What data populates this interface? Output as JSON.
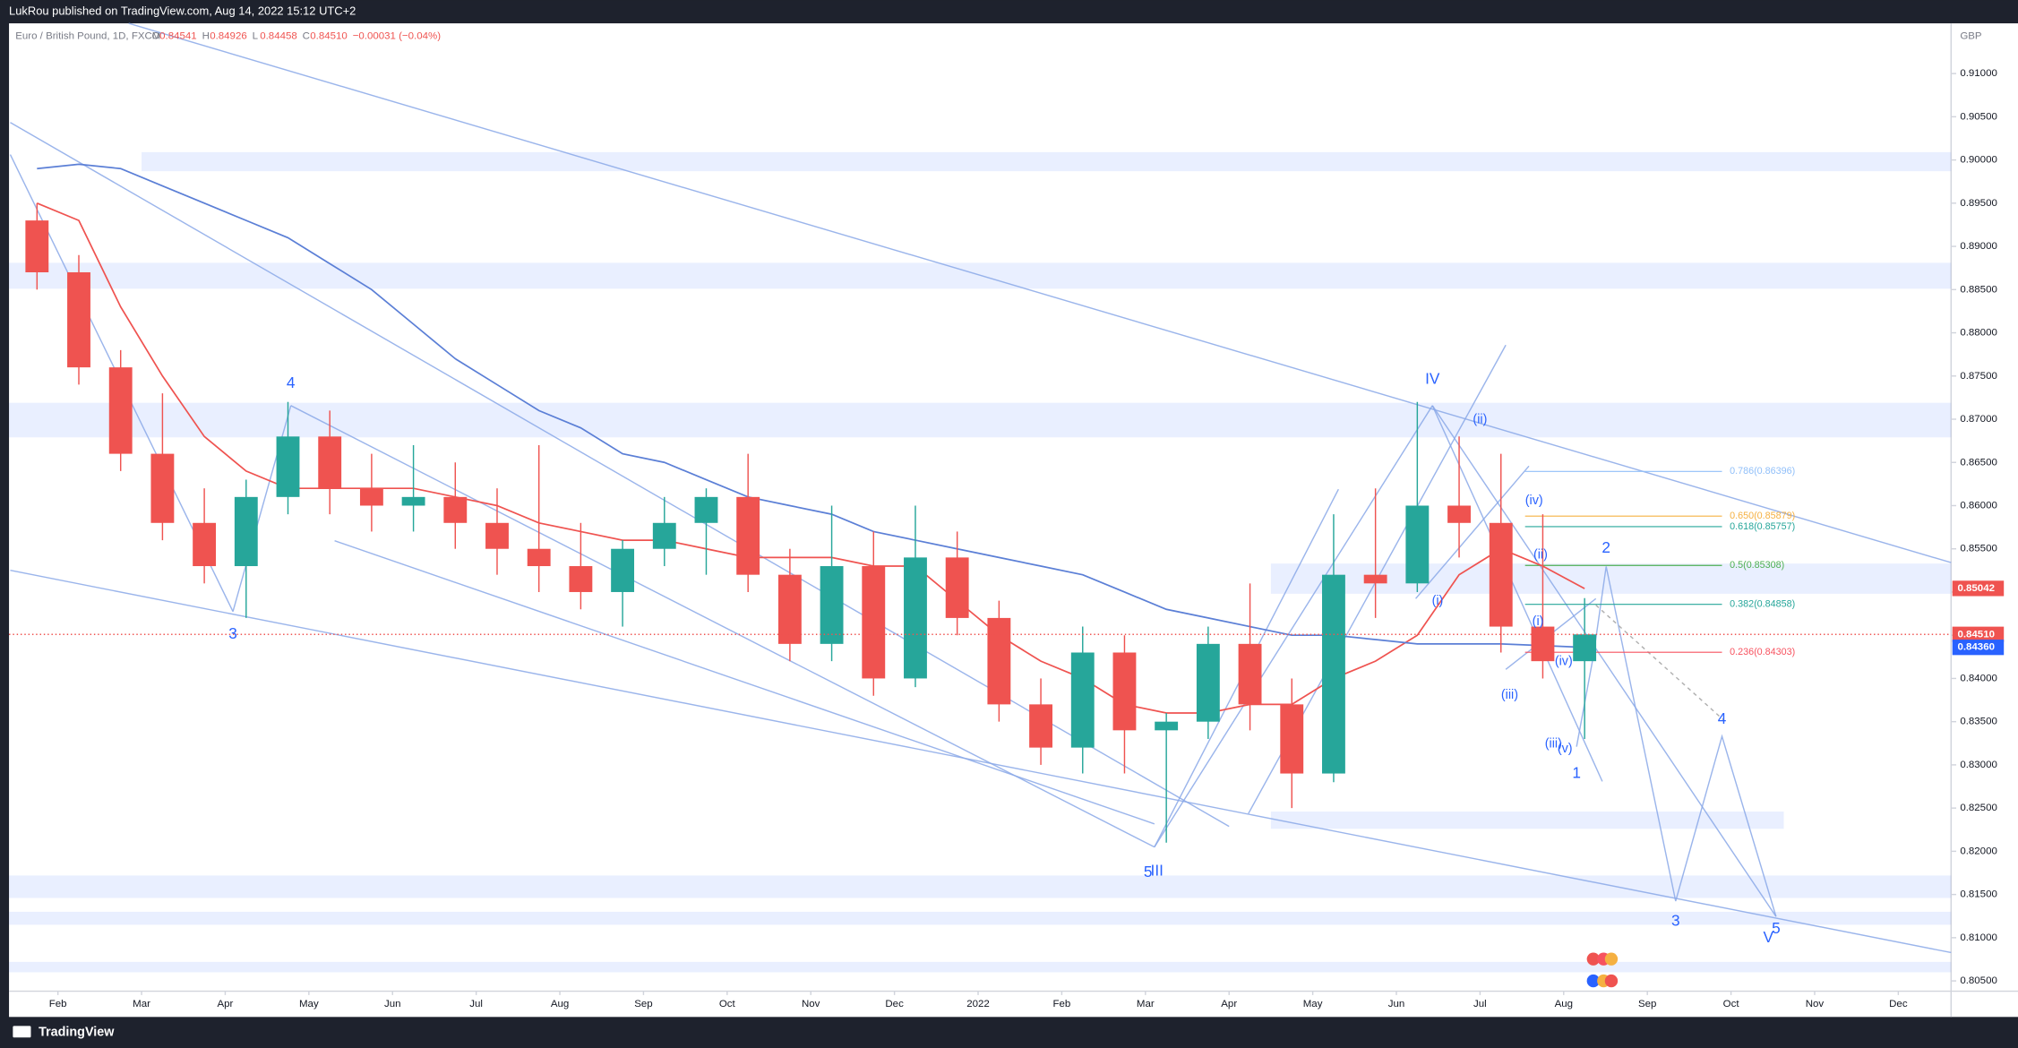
{
  "header": "LukRou published on TradingView.com, Aug 14, 2022 15:12 UTC+2",
  "footer": "TradingView",
  "chart_data": {
    "type": "candlestick",
    "title": "Euro / British Pound, 1D, FXCM",
    "legend": [
      {
        "key": "O",
        "value": "0.84541"
      },
      {
        "key": "H",
        "value": "0.84926"
      },
      {
        "key": "L",
        "value": "0.84458"
      },
      {
        "key": "C",
        "value": "0.84510"
      }
    ],
    "change": "−0.00031 (−0.04%)",
    "currency": "GBP",
    "up_color": "#26a69a",
    "down_color": "#ef5350",
    "ylim": [
      0.80381,
      0.91581
    ],
    "yticks": [
      {
        "value": 0.805,
        "label": "0.80500"
      },
      {
        "value": 0.81,
        "label": "0.81000"
      },
      {
        "value": 0.815,
        "label": "0.81500"
      },
      {
        "value": 0.82,
        "label": "0.82000"
      },
      {
        "value": 0.825,
        "label": "0.82500"
      },
      {
        "value": 0.83,
        "label": "0.83000"
      },
      {
        "value": 0.835,
        "label": "0.83500"
      },
      {
        "value": 0.84,
        "label": "0.84000"
      },
      {
        "value": 0.845,
        "label": "0.84500"
      },
      {
        "value": 0.85,
        "label": "0.85000"
      },
      {
        "value": 0.855,
        "label": "0.85500"
      },
      {
        "value": 0.86,
        "label": "0.86000"
      },
      {
        "value": 0.865,
        "label": "0.86500"
      },
      {
        "value": 0.87,
        "label": "0.87000"
      },
      {
        "value": 0.875,
        "label": "0.87500"
      },
      {
        "value": 0.88,
        "label": "0.88000"
      },
      {
        "value": 0.885,
        "label": "0.88500"
      },
      {
        "value": 0.89,
        "label": "0.89000"
      },
      {
        "value": 0.895,
        "label": "0.89500"
      },
      {
        "value": 0.9,
        "label": "0.90000"
      },
      {
        "value": 0.905,
        "label": "0.90500"
      },
      {
        "value": 0.91,
        "label": "0.91000"
      }
    ],
    "xticks": [
      {
        "value": 0.5,
        "label": "Feb"
      },
      {
        "value": 2.5,
        "label": "Mar"
      },
      {
        "value": 4.5,
        "label": "Apr"
      },
      {
        "value": 6.5,
        "label": "May"
      },
      {
        "value": 8.5,
        "label": "Jun"
      },
      {
        "value": 10.5,
        "label": "Jul"
      },
      {
        "value": 12.5,
        "label": "Aug"
      },
      {
        "value": 14.5,
        "label": "Sep"
      },
      {
        "value": 16.5,
        "label": "Oct"
      },
      {
        "value": 18.5,
        "label": "Nov"
      },
      {
        "value": 20.5,
        "label": "Dec"
      },
      {
        "value": 22.5,
        "label": "2022"
      },
      {
        "value": 24.5,
        "label": "Feb"
      },
      {
        "value": 26.5,
        "label": "Mar"
      },
      {
        "value": 28.5,
        "label": "Apr"
      },
      {
        "value": 30.5,
        "label": "May"
      },
      {
        "value": 32.5,
        "label": "Jun"
      },
      {
        "value": 34.5,
        "label": "Jul"
      },
      {
        "value": 36.5,
        "label": "Aug"
      },
      {
        "value": 38.5,
        "label": "Sep"
      },
      {
        "value": 40.5,
        "label": "Oct"
      },
      {
        "value": 42.5,
        "label": "Nov"
      },
      {
        "value": 44.5,
        "label": "Dec"
      }
    ],
    "open": [
      0.893,
      0.887,
      0.876,
      0.866,
      0.858,
      0.853,
      0.861,
      0.868,
      0.862,
      0.86,
      0.861,
      0.858,
      0.855,
      0.853,
      0.85,
      0.855,
      0.858,
      0.861,
      0.852,
      0.844,
      0.853,
      0.84,
      0.854,
      0.847,
      0.837,
      0.832,
      0.843,
      0.834,
      0.835,
      0.844,
      0.837,
      0.829,
      0.852,
      0.851,
      0.86,
      0.858,
      0.846,
      0.842
    ],
    "high": [
      0.895,
      0.889,
      0.878,
      0.873,
      0.862,
      0.863,
      0.872,
      0.871,
      0.866,
      0.867,
      0.865,
      0.862,
      0.867,
      0.858,
      0.856,
      0.861,
      0.862,
      0.866,
      0.855,
      0.86,
      0.857,
      0.86,
      0.857,
      0.849,
      0.84,
      0.846,
      0.845,
      0.836,
      0.846,
      0.851,
      0.84,
      0.859,
      0.862,
      0.872,
      0.868,
      0.866,
      0.859,
      0.8493
    ],
    "low": [
      0.885,
      0.874,
      0.864,
      0.856,
      0.851,
      0.847,
      0.859,
      0.859,
      0.857,
      0.857,
      0.855,
      0.852,
      0.85,
      0.848,
      0.846,
      0.853,
      0.852,
      0.85,
      0.842,
      0.842,
      0.838,
      0.839,
      0.845,
      0.835,
      0.83,
      0.829,
      0.829,
      0.821,
      0.833,
      0.834,
      0.825,
      0.828,
      0.847,
      0.85,
      0.854,
      0.843,
      0.84,
      0.833
    ],
    "close": [
      0.887,
      0.876,
      0.866,
      0.858,
      0.853,
      0.861,
      0.868,
      0.862,
      0.86,
      0.861,
      0.858,
      0.855,
      0.853,
      0.85,
      0.855,
      0.858,
      0.861,
      0.852,
      0.844,
      0.853,
      0.84,
      0.854,
      0.847,
      0.837,
      0.832,
      0.843,
      0.834,
      0.835,
      0.844,
      0.837,
      0.829,
      0.852,
      0.851,
      0.86,
      0.858,
      0.846,
      0.842,
      0.8451
    ],
    "series": [
      {
        "color": "#ef5350",
        "values": [
          0.895,
          0.893,
          0.883,
          0.875,
          0.868,
          0.864,
          0.862,
          0.862,
          0.862,
          0.862,
          0.861,
          0.86,
          0.858,
          0.857,
          0.856,
          0.856,
          0.855,
          0.854,
          0.854,
          0.854,
          0.853,
          0.853,
          0.849,
          0.845,
          0.842,
          0.84,
          0.837,
          0.836,
          0.836,
          0.837,
          0.837,
          0.84,
          0.842,
          0.845,
          0.852,
          0.855,
          0.853,
          0.8504
        ]
      },
      {
        "color": "#5b7fd6",
        "values": [
          0.899,
          0.8995,
          0.899,
          0.897,
          0.895,
          0.893,
          0.891,
          0.888,
          0.885,
          0.881,
          0.877,
          0.874,
          0.871,
          0.869,
          0.866,
          0.865,
          0.863,
          0.861,
          0.86,
          0.859,
          0.857,
          0.856,
          0.855,
          0.854,
          0.853,
          0.852,
          0.85,
          0.848,
          0.847,
          0.846,
          0.845,
          0.845,
          0.8445,
          0.844,
          0.844,
          0.844,
          0.8438,
          0.8436
        ]
      }
    ],
    "zones": [
      {
        "low": 0.8987,
        "high": 0.9009,
        "start": 2.5
      },
      {
        "low": 0.8851,
        "high": 0.8881,
        "start": -1
      },
      {
        "low": 0.8679,
        "high": 0.8719,
        "start": -1
      },
      {
        "low": 0.8498,
        "high": 0.8533,
        "start": 29.5
      },
      {
        "low": 0.8226,
        "high": 0.8246,
        "start": 29.5
      },
      {
        "low": 0.8146,
        "high": 0.8172,
        "start": -1
      },
      {
        "low": 0.8115,
        "high": 0.813,
        "start": -1
      },
      {
        "low": 0.806,
        "high": 0.8072,
        "start": -1
      }
    ],
    "fib": [
      {
        "value": 0.86396,
        "label": "0.786(0.86396)",
        "color": "#90bff9"
      },
      {
        "value": 0.85879,
        "label": "0.650(0.85879)",
        "color": "#f5b041"
      },
      {
        "value": 0.85757,
        "label": "0.618(0.85757)",
        "color": "#26a69a"
      },
      {
        "value": 0.85308,
        "label": "0.5(0.85308)",
        "color": "#4caf50"
      },
      {
        "value": 0.84858,
        "label": "0.382(0.84858)",
        "color": "#26a69a"
      },
      {
        "value": 0.84303,
        "label": "0.236(0.84303)",
        "color": "#f7525f"
      }
    ],
    "price_labels": [
      {
        "value": 0.85042,
        "label": "0.85042",
        "color": "#ef5350"
      },
      {
        "value": 0.8451,
        "label": "0.84510",
        "color": "#ef5350"
      },
      {
        "value": 0.8436,
        "label": "0.84360",
        "color": "#2962ff"
      }
    ],
    "annotations": [
      "3",
      "4",
      "5",
      "III",
      "IV",
      "(ii)",
      "(iv)",
      "(ii)",
      "(i)",
      "(i)",
      "(iii)",
      "(iv)",
      "(iii)",
      "(v)",
      "1",
      "2",
      "3",
      "4",
      "5",
      "V"
    ]
  }
}
